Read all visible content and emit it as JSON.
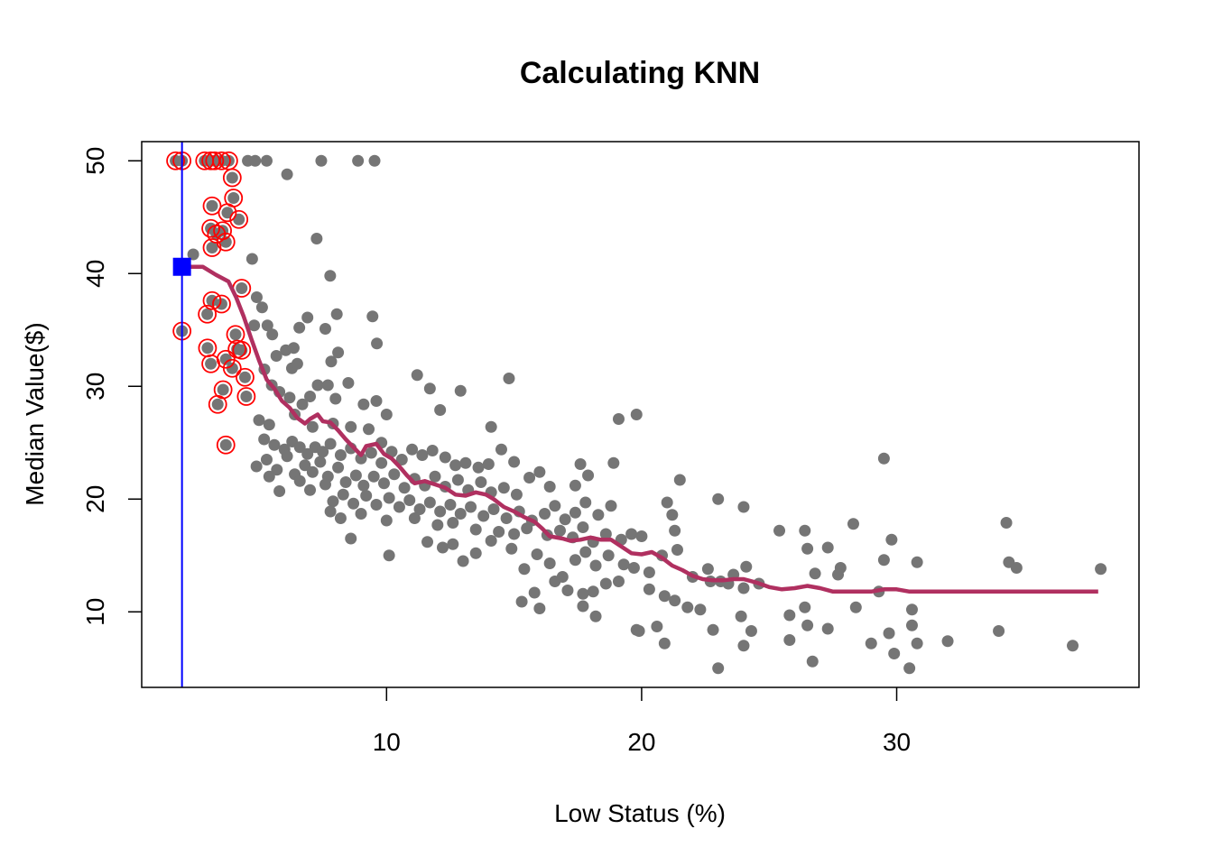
{
  "chart_data": {
    "type": "scatter",
    "title": "Calculating KNN",
    "xlabel": "Low Status (%)",
    "ylabel": "Median Value($)",
    "xlim": [
      0.4,
      39.5
    ],
    "ylim": [
      3.3,
      51.7
    ],
    "xticks": [
      10,
      20,
      30
    ],
    "yticks": [
      10,
      20,
      30,
      40,
      50
    ],
    "grid": false,
    "legend": "none",
    "colors": {
      "points": "#757575",
      "neighbors": "#ff0000",
      "knn_line": "#b03060",
      "query": "#0000ff"
    },
    "query_point": {
      "x": 1.98,
      "y": 40.6
    },
    "neighbors": [
      [
        1.73,
        50.0
      ],
      [
        1.98,
        50.0
      ],
      [
        2.87,
        50.0
      ],
      [
        3.11,
        50.0
      ],
      [
        3.26,
        50.0
      ],
      [
        3.53,
        50.0
      ],
      [
        3.81,
        50.0
      ],
      [
        3.95,
        48.5
      ],
      [
        4.0,
        46.7
      ],
      [
        3.16,
        46.0
      ],
      [
        3.76,
        45.4
      ],
      [
        4.21,
        44.8
      ],
      [
        3.11,
        44.0
      ],
      [
        3.33,
        43.5
      ],
      [
        3.57,
        43.8
      ],
      [
        3.16,
        42.3
      ],
      [
        3.7,
        42.8
      ],
      [
        4.32,
        38.7
      ],
      [
        3.16,
        37.6
      ],
      [
        3.53,
        37.3
      ],
      [
        2.97,
        36.4
      ],
      [
        1.98,
        34.9
      ],
      [
        4.08,
        34.6
      ],
      [
        4.14,
        33.3
      ],
      [
        4.32,
        33.2
      ],
      [
        2.98,
        33.4
      ],
      [
        3.7,
        32.4
      ],
      [
        3.95,
        31.6
      ],
      [
        3.11,
        32.0
      ],
      [
        4.45,
        30.8
      ],
      [
        3.59,
        29.7
      ],
      [
        4.5,
        29.1
      ],
      [
        3.38,
        28.4
      ],
      [
        3.7,
        24.8
      ]
    ],
    "points": [
      [
        4.56,
        50.0
      ],
      [
        4.85,
        50.0
      ],
      [
        5.3,
        50.0
      ],
      [
        7.44,
        50.0
      ],
      [
        8.88,
        50.0
      ],
      [
        9.53,
        50.0
      ],
      [
        6.1,
        48.8
      ],
      [
        2.42,
        41.7
      ],
      [
        7.79,
        39.8
      ],
      [
        7.26,
        43.1
      ],
      [
        4.73,
        41.3
      ],
      [
        4.81,
        35.4
      ],
      [
        5.12,
        37.0
      ],
      [
        5.33,
        35.4
      ],
      [
        5.52,
        34.6
      ],
      [
        4.91,
        37.9
      ],
      [
        5.68,
        32.7
      ],
      [
        6.05,
        33.2
      ],
      [
        6.36,
        33.4
      ],
      [
        6.58,
        35.2
      ],
      [
        6.9,
        36.1
      ],
      [
        7.6,
        35.1
      ],
      [
        8.05,
        36.4
      ],
      [
        9.45,
        36.2
      ],
      [
        7.83,
        32.2
      ],
      [
        8.1,
        33.0
      ],
      [
        9.62,
        33.8
      ],
      [
        6.29,
        31.6
      ],
      [
        6.5,
        32.0
      ],
      [
        5.21,
        31.5
      ],
      [
        5.5,
        30.1
      ],
      [
        5.8,
        29.5
      ],
      [
        6.2,
        29.0
      ],
      [
        6.7,
        28.4
      ],
      [
        7.0,
        29.1
      ],
      [
        7.3,
        30.1
      ],
      [
        7.7,
        30.1
      ],
      [
        8.0,
        28.9
      ],
      [
        8.5,
        30.3
      ],
      [
        9.1,
        28.4
      ],
      [
        9.6,
        28.7
      ],
      [
        10.0,
        27.5
      ],
      [
        11.2,
        31.0
      ],
      [
        11.7,
        29.8
      ],
      [
        12.9,
        29.6
      ],
      [
        14.8,
        30.7
      ],
      [
        12.1,
        27.9
      ],
      [
        14.1,
        26.4
      ],
      [
        19.1,
        27.1
      ],
      [
        19.8,
        27.5
      ],
      [
        5.0,
        27.0
      ],
      [
        5.4,
        26.6
      ],
      [
        6.4,
        27.5
      ],
      [
        7.1,
        26.4
      ],
      [
        7.9,
        26.7
      ],
      [
        8.6,
        26.4
      ],
      [
        9.3,
        26.2
      ],
      [
        9.8,
        25.0
      ],
      [
        5.2,
        25.3
      ],
      [
        5.6,
        24.8
      ],
      [
        6.0,
        24.4
      ],
      [
        6.3,
        25.1
      ],
      [
        6.6,
        24.6
      ],
      [
        6.9,
        24.0
      ],
      [
        7.2,
        24.6
      ],
      [
        7.5,
        24.2
      ],
      [
        7.8,
        24.9
      ],
      [
        8.2,
        23.9
      ],
      [
        8.6,
        24.5
      ],
      [
        9.0,
        23.6
      ],
      [
        9.4,
        24.1
      ],
      [
        9.8,
        23.2
      ],
      [
        10.2,
        24.2
      ],
      [
        10.6,
        23.5
      ],
      [
        11.0,
        24.4
      ],
      [
        11.4,
        23.9
      ],
      [
        11.8,
        24.3
      ],
      [
        12.3,
        23.7
      ],
      [
        12.7,
        23.0
      ],
      [
        13.1,
        23.2
      ],
      [
        13.6,
        22.8
      ],
      [
        14.0,
        23.1
      ],
      [
        14.5,
        24.4
      ],
      [
        15.0,
        23.3
      ],
      [
        4.9,
        22.9
      ],
      [
        5.3,
        23.5
      ],
      [
        5.7,
        22.6
      ],
      [
        6.1,
        23.8
      ],
      [
        6.4,
        22.2
      ],
      [
        6.8,
        23.0
      ],
      [
        7.1,
        22.4
      ],
      [
        7.4,
        23.3
      ],
      [
        7.7,
        22.0
      ],
      [
        8.1,
        22.8
      ],
      [
        8.4,
        21.5
      ],
      [
        8.8,
        22.1
      ],
      [
        9.1,
        21.2
      ],
      [
        9.5,
        22.0
      ],
      [
        9.9,
        21.4
      ],
      [
        10.3,
        22.2
      ],
      [
        10.7,
        21.0
      ],
      [
        11.1,
        21.8
      ],
      [
        11.5,
        21.2
      ],
      [
        11.9,
        22.0
      ],
      [
        12.3,
        21.1
      ],
      [
        12.8,
        21.7
      ],
      [
        13.2,
        20.8
      ],
      [
        13.7,
        21.5
      ],
      [
        14.1,
        20.6
      ],
      [
        14.6,
        21.0
      ],
      [
        15.1,
        20.4
      ],
      [
        15.6,
        21.9
      ],
      [
        16.0,
        22.4
      ],
      [
        16.4,
        21.1
      ],
      [
        5.4,
        22.0
      ],
      [
        5.8,
        20.7
      ],
      [
        6.6,
        21.6
      ],
      [
        7.0,
        20.8
      ],
      [
        7.6,
        21.3
      ],
      [
        7.9,
        19.8
      ],
      [
        8.3,
        20.4
      ],
      [
        8.7,
        19.6
      ],
      [
        9.2,
        20.3
      ],
      [
        9.6,
        19.5
      ],
      [
        10.1,
        20.1
      ],
      [
        10.5,
        19.3
      ],
      [
        10.9,
        19.9
      ],
      [
        11.3,
        19.1
      ],
      [
        11.7,
        19.7
      ],
      [
        12.1,
        18.9
      ],
      [
        12.5,
        19.5
      ],
      [
        12.9,
        18.7
      ],
      [
        13.3,
        19.3
      ],
      [
        13.8,
        18.5
      ],
      [
        14.2,
        19.1
      ],
      [
        14.7,
        18.3
      ],
      [
        15.2,
        18.9
      ],
      [
        15.7,
        18.1
      ],
      [
        16.2,
        18.7
      ],
      [
        16.6,
        19.4
      ],
      [
        17.0,
        18.2
      ],
      [
        17.4,
        18.8
      ],
      [
        17.8,
        19.7
      ],
      [
        18.3,
        18.6
      ],
      [
        18.8,
        19.4
      ],
      [
        7.8,
        18.9
      ],
      [
        8.2,
        18.3
      ],
      [
        9.0,
        18.7
      ],
      [
        10.0,
        18.1
      ],
      [
        11.1,
        18.3
      ],
      [
        12.0,
        17.7
      ],
      [
        12.6,
        17.9
      ],
      [
        13.5,
        17.3
      ],
      [
        14.4,
        17.1
      ],
      [
        15.0,
        16.9
      ],
      [
        15.5,
        17.4
      ],
      [
        16.3,
        16.8
      ],
      [
        16.8,
        17.2
      ],
      [
        17.3,
        16.6
      ],
      [
        17.7,
        17.5
      ],
      [
        18.1,
        16.2
      ],
      [
        18.6,
        16.9
      ],
      [
        19.2,
        16.4
      ],
      [
        19.6,
        16.9
      ],
      [
        20.0,
        16.7
      ],
      [
        21.3,
        17.2
      ],
      [
        21.2,
        18.6
      ],
      [
        21.0,
        19.7
      ],
      [
        21.5,
        21.7
      ],
      [
        17.6,
        23.1
      ],
      [
        18.9,
        23.2
      ],
      [
        17.9,
        22.1
      ],
      [
        17.4,
        21.2
      ],
      [
        8.6,
        16.5
      ],
      [
        10.1,
        15.0
      ],
      [
        11.6,
        16.2
      ],
      [
        12.2,
        15.7
      ],
      [
        12.6,
        16.0
      ],
      [
        13.0,
        14.5
      ],
      [
        13.5,
        15.2
      ],
      [
        14.1,
        16.3
      ],
      [
        14.9,
        15.6
      ],
      [
        15.4,
        13.8
      ],
      [
        15.9,
        15.1
      ],
      [
        16.4,
        14.3
      ],
      [
        16.9,
        13.1
      ],
      [
        17.4,
        14.6
      ],
      [
        17.8,
        15.3
      ],
      [
        18.2,
        14.1
      ],
      [
        18.7,
        15.0
      ],
      [
        19.3,
        14.2
      ],
      [
        19.7,
        13.9
      ],
      [
        20.3,
        13.5
      ],
      [
        20.8,
        15.0
      ],
      [
        21.4,
        15.5
      ],
      [
        22.0,
        13.1
      ],
      [
        22.6,
        13.8
      ],
      [
        23.1,
        12.7
      ],
      [
        23.6,
        13.3
      ],
      [
        24.1,
        14.0
      ],
      [
        16.6,
        12.7
      ],
      [
        17.1,
        11.9
      ],
      [
        18.1,
        11.8
      ],
      [
        18.6,
        12.5
      ],
      [
        19.1,
        12.7
      ],
      [
        20.3,
        12.0
      ],
      [
        20.9,
        11.4
      ],
      [
        21.3,
        11.0
      ],
      [
        21.8,
        10.4
      ],
      [
        22.7,
        12.7
      ],
      [
        23.4,
        12.5
      ],
      [
        24.0,
        12.1
      ],
      [
        24.6,
        12.5
      ],
      [
        23.0,
        20.0
      ],
      [
        24.0,
        19.3
      ],
      [
        25.4,
        17.2
      ],
      [
        26.4,
        17.2
      ],
      [
        27.3,
        15.7
      ],
      [
        26.5,
        15.6
      ],
      [
        27.8,
        13.9
      ],
      [
        27.7,
        13.3
      ],
      [
        26.8,
        13.4
      ],
      [
        28.3,
        17.8
      ],
      [
        29.3,
        11.8
      ],
      [
        29.5,
        14.6
      ],
      [
        29.5,
        23.6
      ],
      [
        29.8,
        16.4
      ],
      [
        30.8,
        14.4
      ],
      [
        34.3,
        17.9
      ],
      [
        34.4,
        14.4
      ],
      [
        34.7,
        13.9
      ],
      [
        38.0,
        13.8
      ],
      [
        15.3,
        10.9
      ],
      [
        16.0,
        10.3
      ],
      [
        17.7,
        10.5
      ],
      [
        15.8,
        11.7
      ],
      [
        17.7,
        11.6
      ],
      [
        18.2,
        9.6
      ],
      [
        19.8,
        8.4
      ],
      [
        20.6,
        8.7
      ],
      [
        20.9,
        7.2
      ],
      [
        22.8,
        8.4
      ],
      [
        24.0,
        7.0
      ],
      [
        23.9,
        9.6
      ],
      [
        24.3,
        8.3
      ],
      [
        25.8,
        9.7
      ],
      [
        26.5,
        8.8
      ],
      [
        25.8,
        7.5
      ],
      [
        27.3,
        8.5
      ],
      [
        26.7,
        5.6
      ],
      [
        28.4,
        10.4
      ],
      [
        29.0,
        7.2
      ],
      [
        29.7,
        8.1
      ],
      [
        29.9,
        6.3
      ],
      [
        30.6,
        8.8
      ],
      [
        30.8,
        7.2
      ],
      [
        30.5,
        5.0
      ],
      [
        32.0,
        7.4
      ],
      [
        34.0,
        8.3
      ],
      [
        36.9,
        7.0
      ],
      [
        23.0,
        5.0
      ],
      [
        30.6,
        10.2
      ],
      [
        26.4,
        10.4
      ],
      [
        22.3,
        10.2
      ],
      [
        19.9,
        8.3
      ]
    ],
    "knn_line": [
      [
        1.98,
        40.6
      ],
      [
        2.8,
        40.6
      ],
      [
        3.3,
        39.9
      ],
      [
        3.8,
        39.3
      ],
      [
        4.1,
        37.9
      ],
      [
        4.4,
        36.2
      ],
      [
        4.7,
        34.2
      ],
      [
        5.0,
        32.3
      ],
      [
        5.3,
        30.6
      ],
      [
        5.6,
        29.8
      ],
      [
        5.9,
        28.7
      ],
      [
        6.2,
        28.1
      ],
      [
        6.5,
        27.2
      ],
      [
        6.8,
        26.7
      ],
      [
        7.0,
        27.1
      ],
      [
        7.3,
        27.5
      ],
      [
        7.5,
        26.9
      ],
      [
        7.8,
        26.8
      ],
      [
        8.1,
        26.1
      ],
      [
        8.4,
        25.3
      ],
      [
        8.7,
        24.6
      ],
      [
        9.0,
        23.9
      ],
      [
        9.2,
        24.7
      ],
      [
        9.6,
        24.9
      ],
      [
        9.9,
        24.0
      ],
      [
        10.2,
        23.6
      ],
      [
        10.5,
        22.9
      ],
      [
        10.8,
        22.1
      ],
      [
        11.1,
        21.4
      ],
      [
        11.5,
        21.6
      ],
      [
        11.9,
        21.3
      ],
      [
        12.3,
        21.0
      ],
      [
        12.7,
        20.4
      ],
      [
        13.1,
        20.3
      ],
      [
        13.5,
        20.6
      ],
      [
        13.9,
        20.4
      ],
      [
        14.2,
        20.0
      ],
      [
        14.6,
        19.3
      ],
      [
        15.0,
        18.9
      ],
      [
        15.4,
        18.4
      ],
      [
        15.8,
        18.0
      ],
      [
        16.1,
        17.4
      ],
      [
        16.4,
        16.7
      ],
      [
        16.9,
        16.5
      ],
      [
        17.2,
        16.3
      ],
      [
        17.6,
        16.4
      ],
      [
        18.0,
        16.6
      ],
      [
        18.4,
        16.4
      ],
      [
        18.8,
        16.4
      ],
      [
        19.2,
        15.8
      ],
      [
        19.6,
        15.2
      ],
      [
        20.0,
        15.1
      ],
      [
        20.4,
        15.3
      ],
      [
        20.8,
        14.8
      ],
      [
        21.2,
        14.1
      ],
      [
        21.6,
        13.7
      ],
      [
        22.0,
        13.2
      ],
      [
        22.4,
        12.9
      ],
      [
        22.8,
        12.8
      ],
      [
        23.2,
        12.8
      ],
      [
        23.6,
        12.9
      ],
      [
        24.0,
        12.9
      ],
      [
        24.5,
        12.6
      ],
      [
        25.0,
        12.2
      ],
      [
        25.5,
        12.0
      ],
      [
        26.0,
        12.1
      ],
      [
        26.5,
        12.3
      ],
      [
        27.0,
        12.1
      ],
      [
        27.5,
        11.8
      ],
      [
        28.0,
        11.8
      ],
      [
        29.0,
        11.8
      ],
      [
        29.5,
        12.0
      ],
      [
        30.0,
        12.0
      ],
      [
        30.5,
        11.8
      ],
      [
        32.0,
        11.8
      ],
      [
        34.0,
        11.8
      ],
      [
        36.0,
        11.8
      ],
      [
        37.9,
        11.8
      ]
    ]
  }
}
